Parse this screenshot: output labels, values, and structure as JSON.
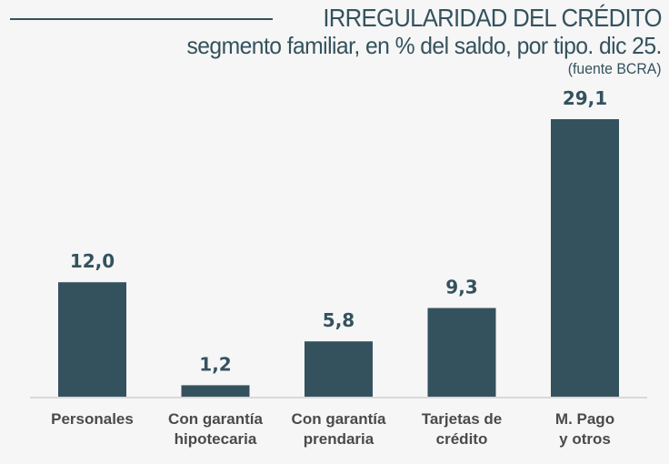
{
  "header": {
    "title": "IRREGULARIDAD DEL CRÉDITO",
    "subtitle": "segmento familiar, en % del saldo, por tipo. dic 25.",
    "source": "(fuente BCRA)"
  },
  "colors": {
    "bar": "#34525e",
    "text": "#34525e",
    "category_text": "#4a4a4a",
    "baseline": "#d9d9d9",
    "background": "#f6f6f6"
  },
  "chart_data": {
    "type": "bar",
    "title": "IRREGULARIDAD DEL CRÉDITO",
    "subtitle": "segmento familiar, en % del saldo, por tipo. dic 25.",
    "source": "(fuente BCRA)",
    "xlabel": "",
    "ylabel": "",
    "categories": [
      [
        "Personales"
      ],
      [
        "Con garantía",
        "hipotecaria"
      ],
      [
        "Con garantía",
        "prendaria"
      ],
      [
        "Tarjetas de",
        "crédito"
      ],
      [
        "M. Pago",
        "y otros"
      ]
    ],
    "values": [
      12.0,
      1.2,
      5.8,
      9.3,
      29.1
    ],
    "value_labels": [
      "12,0",
      "1,2",
      "5,8",
      "9,3",
      "29,1"
    ],
    "ylim": [
      0,
      29.1
    ],
    "grid": false,
    "legend": "none"
  }
}
